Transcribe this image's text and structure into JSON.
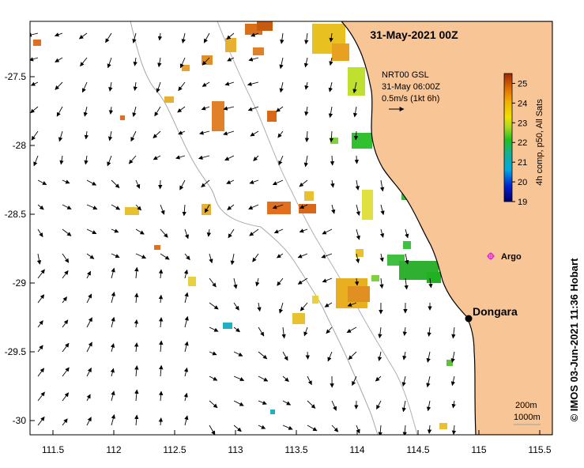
{
  "map": {
    "title": "31-May-2021 00Z",
    "product_line1": "NRT00 GSL",
    "product_line2": "31-May 06:00Z",
    "scale_label": "0.5m/s (1kt 6h)",
    "colorbar_title": "4h comp, p50, All Sats",
    "colorbar_ticks": [
      "19",
      "20",
      "21",
      "22",
      "23",
      "24",
      "25"
    ],
    "colorbar_min": 19,
    "colorbar_max": 25.5,
    "x_ticks": [
      "111.5",
      "112",
      "112.5",
      "113",
      "113.5",
      "114",
      "114.5",
      "115",
      "115.5"
    ],
    "y_ticks": [
      "-27.5",
      "-28",
      "-28.5",
      "-29",
      "-29.5",
      "-30"
    ],
    "place_dongara": "Dongara",
    "place_argo": "Argo",
    "contour_200": "200m",
    "contour_1000": "1000m",
    "credit": "© IMOS 03-Jun-2021 11:36 Hobart",
    "colors": {
      "land": "#f8c596",
      "land_edge": "#000000",
      "argo": "#e020e0",
      "bathy": "#a0a0a0"
    }
  }
}
